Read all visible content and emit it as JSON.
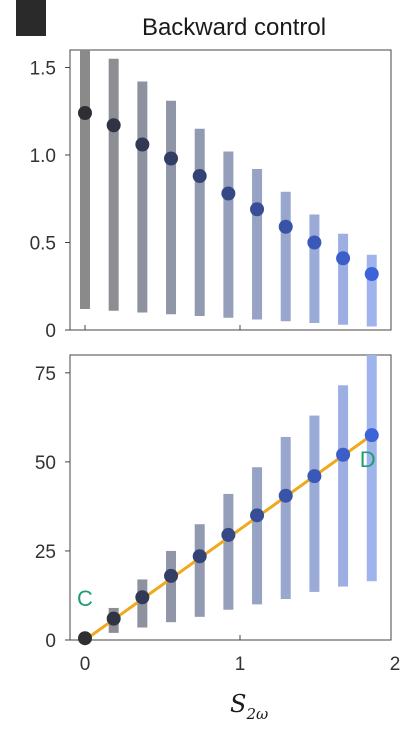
{
  "title": "Backward control",
  "colors": {
    "series_start": "#8a8a8a",
    "series_end": "#9fb3ec",
    "point_start": "#2e2e33",
    "point_end": "#3d63d8",
    "fit_line": "#f0a81c",
    "annotation": "#1f9e6e",
    "frame": "#444444"
  },
  "chart_data": [
    {
      "type": "scatter",
      "panel": "top",
      "title": "Backward control",
      "xlabel": "",
      "ylabel": "",
      "xlim": [
        -0.05,
        2.0
      ],
      "ylim": [
        0,
        1.6
      ],
      "yticks": [
        0,
        0.5,
        1.0,
        1.5
      ],
      "ytick_labels": [
        "0",
        "0.5",
        "1.0",
        "1.5"
      ],
      "grid": false,
      "legend": "none",
      "points": [
        {
          "x": 0.0,
          "y": 1.24,
          "low": 0.12,
          "high": 1.62
        },
        {
          "x": 0.185,
          "y": 1.17,
          "low": 0.11,
          "high": 1.55
        },
        {
          "x": 0.37,
          "y": 1.06,
          "low": 0.1,
          "high": 1.42
        },
        {
          "x": 0.555,
          "y": 0.98,
          "low": 0.09,
          "high": 1.31
        },
        {
          "x": 0.74,
          "y": 0.88,
          "low": 0.08,
          "high": 1.15
        },
        {
          "x": 0.925,
          "y": 0.78,
          "low": 0.07,
          "high": 1.02
        },
        {
          "x": 1.11,
          "y": 0.69,
          "low": 0.06,
          "high": 0.92
        },
        {
          "x": 1.295,
          "y": 0.59,
          "low": 0.05,
          "high": 0.79
        },
        {
          "x": 1.48,
          "y": 0.5,
          "low": 0.04,
          "high": 0.66
        },
        {
          "x": 1.665,
          "y": 0.41,
          "low": 0.03,
          "high": 0.55
        },
        {
          "x": 1.85,
          "y": 0.32,
          "low": 0.02,
          "high": 0.43
        }
      ]
    },
    {
      "type": "scatter",
      "panel": "bottom",
      "xlabel_main": "S",
      "xlabel_sub": "2ω",
      "ylabel": "",
      "xlim": [
        -0.05,
        2.0
      ],
      "ylim": [
        0,
        80
      ],
      "xticks": [
        0,
        1,
        2
      ],
      "xtick_labels": [
        "0",
        "1",
        "2"
      ],
      "yticks": [
        0,
        25,
        50,
        75
      ],
      "ytick_labels": [
        "0",
        "25",
        "50",
        "75"
      ],
      "grid": false,
      "legend": "none",
      "fit_line": {
        "x": [
          0.0,
          1.85
        ],
        "y": [
          0.0,
          57.5
        ]
      },
      "annotations": [
        {
          "text": "C",
          "x": 0.0,
          "y": 9.5
        },
        {
          "text": "D",
          "x": 1.85,
          "y": 48.5
        }
      ],
      "points": [
        {
          "x": 0.0,
          "y": 0.5,
          "low": 0.0,
          "high": 0.5
        },
        {
          "x": 0.185,
          "y": 6.0,
          "low": 2.0,
          "high": 9.0
        },
        {
          "x": 0.37,
          "y": 12.0,
          "low": 3.5,
          "high": 17.0
        },
        {
          "x": 0.555,
          "y": 18.0,
          "low": 5.0,
          "high": 25.0
        },
        {
          "x": 0.74,
          "y": 23.5,
          "low": 6.5,
          "high": 32.5
        },
        {
          "x": 0.925,
          "y": 29.5,
          "low": 8.5,
          "high": 41.0
        },
        {
          "x": 1.11,
          "y": 35.0,
          "low": 10.0,
          "high": 48.5
        },
        {
          "x": 1.295,
          "y": 40.5,
          "low": 11.5,
          "high": 57.0
        },
        {
          "x": 1.48,
          "y": 46.0,
          "low": 13.5,
          "high": 63.0
        },
        {
          "x": 1.665,
          "y": 52.0,
          "low": 15.0,
          "high": 71.5
        },
        {
          "x": 1.85,
          "y": 57.5,
          "low": 16.5,
          "high": 80.0
        }
      ]
    }
  ]
}
